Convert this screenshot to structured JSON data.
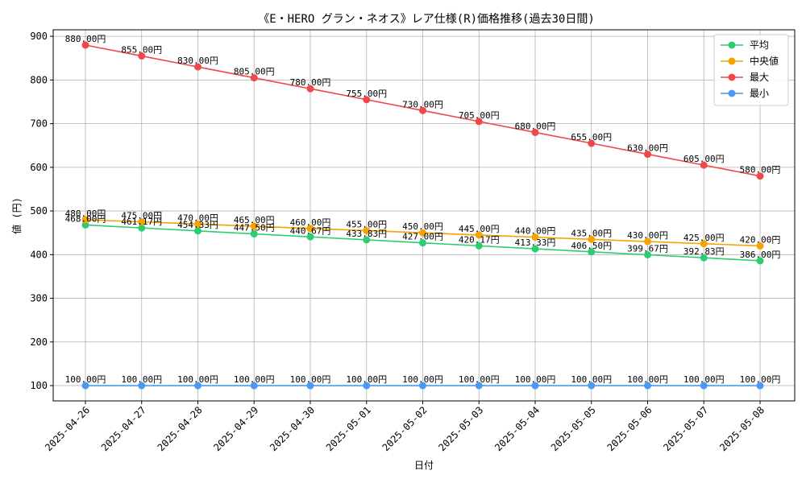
{
  "chart_data": {
    "type": "line",
    "title": "《E・HERO グラン・ネオス》レア仕様(R)価格推移(過去30日間)",
    "xlabel": "日付",
    "ylabel": "値 (円)",
    "categories": [
      "2025-04-26",
      "2025-04-27",
      "2025-04-28",
      "2025-04-29",
      "2025-04-30",
      "2025-05-01",
      "2025-05-02",
      "2025-05-03",
      "2025-05-04",
      "2025-05-05",
      "2025-05-06",
      "2025-05-07",
      "2025-05-08"
    ],
    "ylim": [
      65,
      915
    ],
    "yticks": [
      100,
      200,
      300,
      400,
      500,
      600,
      700,
      800,
      900
    ],
    "grid": true,
    "legend_position": "top-right",
    "series": [
      {
        "name": "平均",
        "color": "#2ecc71",
        "values": [
          468.0,
          461.17,
          454.33,
          447.5,
          440.67,
          433.83,
          427.0,
          420.17,
          413.33,
          406.5,
          399.67,
          392.83,
          386.0
        ],
        "labels": [
          "468.00円",
          "461.17円",
          "454.33円",
          "447.50円",
          "440.67円",
          "433.83円",
          "427.00円",
          "420.17円",
          "413.33円",
          "406.50円",
          "399.67円",
          "392.83円",
          "386.00円"
        ]
      },
      {
        "name": "中央値",
        "color": "#f5a300",
        "values": [
          480,
          475,
          470,
          465,
          460,
          455,
          450,
          445,
          440,
          435,
          430,
          425,
          420
        ],
        "labels": [
          "480.00円",
          "475.00円",
          "470.00円",
          "465.00円",
          "460.00円",
          "455.00円",
          "450.00円",
          "445.00円",
          "440.00円",
          "435.00円",
          "430.00円",
          "425.00円",
          "420.00円"
        ]
      },
      {
        "name": "最大",
        "color": "#f04848",
        "values": [
          880,
          855,
          830,
          805,
          780,
          755,
          730,
          705,
          680,
          655,
          630,
          605,
          580
        ],
        "labels": [
          "880.00円",
          "855.00円",
          "830.00円",
          "805.00円",
          "780.00円",
          "755.00円",
          "730.00円",
          "705.00円",
          "680.00円",
          "655.00円",
          "630.00円",
          "605.00円",
          "580.00円"
        ]
      },
      {
        "name": "最小",
        "color": "#4a9af0",
        "values": [
          100,
          100,
          100,
          100,
          100,
          100,
          100,
          100,
          100,
          100,
          100,
          100,
          100
        ],
        "labels": [
          "100.00円",
          "100.00円",
          "100.00円",
          "100.00円",
          "100.00円",
          "100.00円",
          "100.00円",
          "100.00円",
          "100.00円",
          "100.00円",
          "100.00円",
          "100.00円",
          "100.00円"
        ]
      }
    ]
  }
}
